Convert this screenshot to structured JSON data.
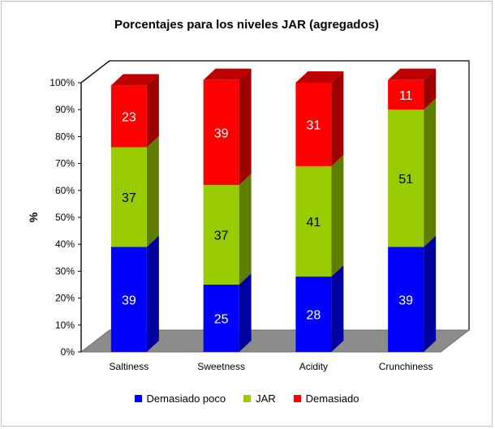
{
  "chart_data": {
    "type": "bar",
    "stacked": true,
    "title": "Porcentajes para los niveles JAR (agregados)",
    "ylabel": "%",
    "xlabel": "",
    "ylim": [
      0,
      100
    ],
    "yticks": [
      "0%",
      "10%",
      "20%",
      "30%",
      "40%",
      "50%",
      "60%",
      "70%",
      "80%",
      "90%",
      "100%"
    ],
    "categories": [
      "Saltiness",
      "Sweetness",
      "Acidity",
      "Crunchiness"
    ],
    "series": [
      {
        "name": "Demasiado poco",
        "values": [
          39,
          25,
          28,
          39
        ],
        "color": "#0000ff"
      },
      {
        "name": "JAR",
        "values": [
          37,
          37,
          41,
          51
        ],
        "color": "#99cc00"
      },
      {
        "name": "Demasiado",
        "values": [
          23,
          39,
          31,
          11
        ],
        "color": "#ff0000"
      }
    ],
    "legend_position": "bottom",
    "grid": false
  }
}
